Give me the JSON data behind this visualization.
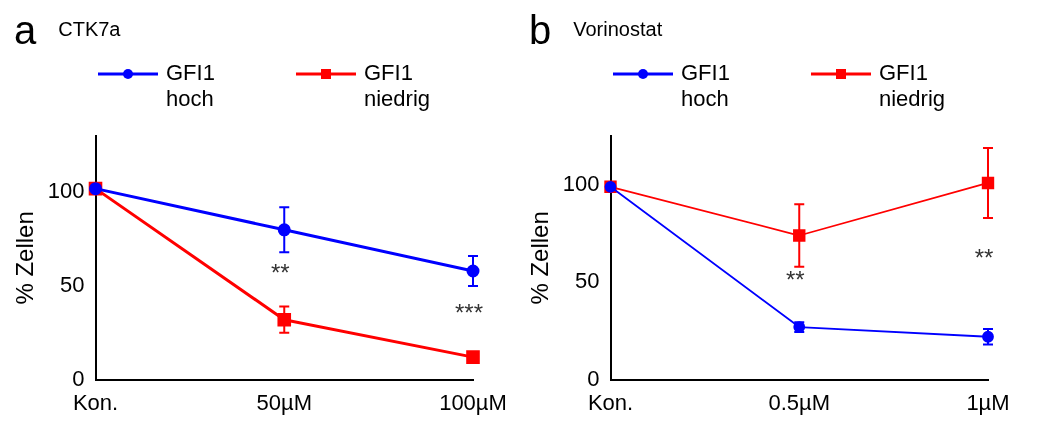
{
  "chart_data": [
    {
      "type": "line",
      "title": "CTK7a",
      "ylabel": "% Zellen",
      "categories": [
        "Kon.",
        "50µM",
        "100µM"
      ],
      "ylim": [
        0,
        130
      ],
      "yticks": [
        0,
        50,
        100
      ],
      "legend": "top",
      "grid": false,
      "annotations": [
        "a",
        "**",
        "***"
      ],
      "series": [
        {
          "name": "GFI1 hoch",
          "color": "#0000ff",
          "marker": "circle",
          "values": [
            102,
            80,
            58
          ],
          "errors": [
            null,
            12,
            8
          ]
        },
        {
          "name": "GFI1 niedrig",
          "color": "#ff0000",
          "marker": "square",
          "values": [
            102,
            32,
            12
          ],
          "errors": [
            null,
            7,
            null
          ]
        }
      ]
    },
    {
      "type": "line",
      "title": "Vorinostat",
      "ylabel": "% Zellen",
      "categories": [
        "Kon.",
        "0.5µM",
        "1µM"
      ],
      "ylim": [
        0,
        125
      ],
      "yticks": [
        0,
        50,
        100
      ],
      "legend": "top",
      "grid": false,
      "annotations": [
        "b",
        "**",
        "**"
      ],
      "series": [
        {
          "name": "GFI1 hoch",
          "color": "#0000ff",
          "marker": "circle",
          "values": [
            99,
            27,
            22
          ],
          "errors": [
            null,
            2.5,
            4
          ]
        },
        {
          "name": "GFI1 niedrig",
          "color": "#ff0000",
          "marker": "square",
          "values": [
            99,
            74,
            101
          ],
          "errors": [
            null,
            16,
            18
          ]
        }
      ]
    }
  ]
}
